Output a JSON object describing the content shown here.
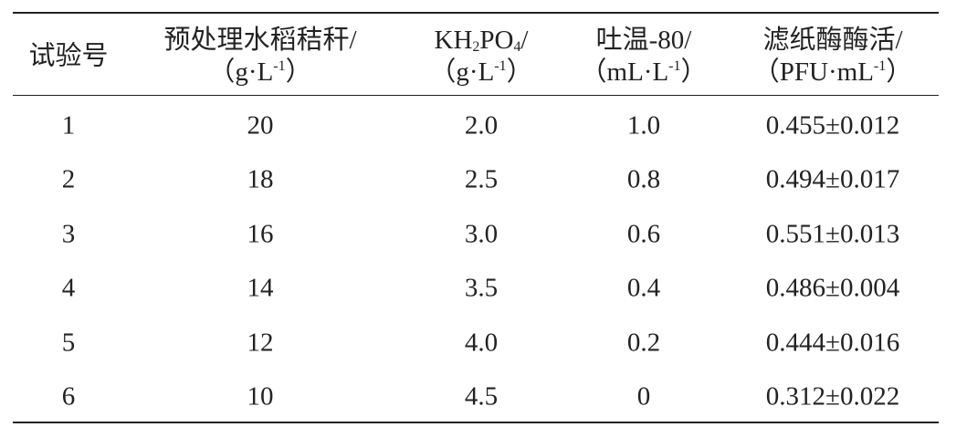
{
  "table": {
    "header": [
      [
        [
          {
            "text": "试验号"
          }
        ]
      ],
      [
        [
          {
            "text": "预处理水稻秸秆/"
          }
        ],
        [
          {
            "text": "（g·L"
          },
          {
            "sup": "-1"
          },
          {
            "text": "）"
          }
        ]
      ],
      [
        [
          {
            "text": "KH"
          },
          {
            "sub": "2"
          },
          {
            "text": "PO"
          },
          {
            "sub": "4"
          },
          {
            "text": "/"
          }
        ],
        [
          {
            "text": "（g·L"
          },
          {
            "sup": "-1"
          },
          {
            "text": "）"
          }
        ]
      ],
      [
        [
          {
            "text": "吐温-80/"
          }
        ],
        [
          {
            "text": "（mL·L"
          },
          {
            "sup": "-1"
          },
          {
            "text": "）"
          }
        ]
      ],
      [
        [
          {
            "text": "滤纸酶酶活/"
          }
        ],
        [
          {
            "text": "（PFU·mL"
          },
          {
            "sup": "-1"
          },
          {
            "text": "）"
          }
        ]
      ]
    ],
    "rows": [
      [
        "1",
        "20",
        "2.0",
        "1.0",
        "0.455±0.012"
      ],
      [
        "2",
        "18",
        "2.5",
        "0.8",
        "0.494±0.017"
      ],
      [
        "3",
        "16",
        "3.0",
        "0.6",
        "0.551±0.013"
      ],
      [
        "4",
        "14",
        "3.5",
        "0.4",
        "0.486±0.004"
      ],
      [
        "5",
        "12",
        "4.0",
        "0.2",
        "0.444±0.016"
      ],
      [
        "6",
        "10",
        "4.5",
        "0",
        "0.312±0.022"
      ]
    ]
  }
}
